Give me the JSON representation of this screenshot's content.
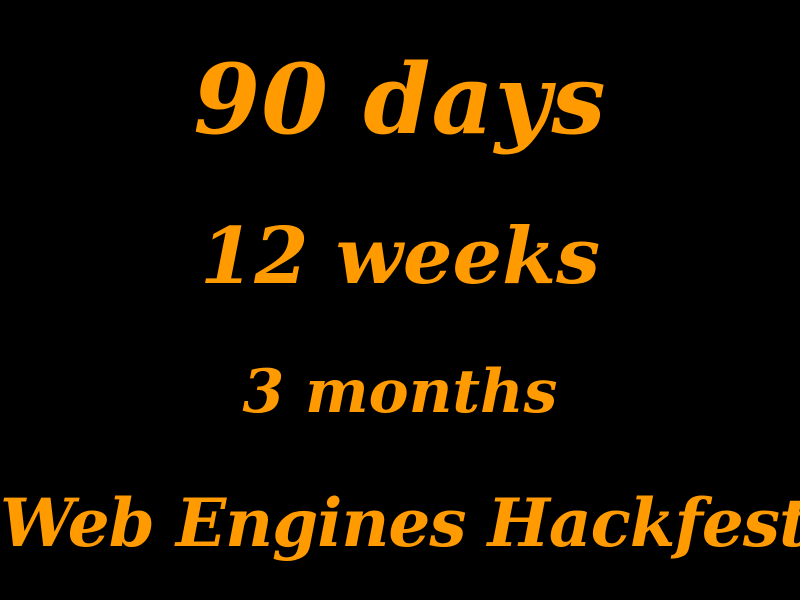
{
  "slide": {
    "line1": "90 days",
    "line2": "12 weeks",
    "line3": "3 months",
    "line4": "Web Engines Hackfest"
  },
  "colors": {
    "background": "#000000",
    "text": "#ff9a00"
  }
}
